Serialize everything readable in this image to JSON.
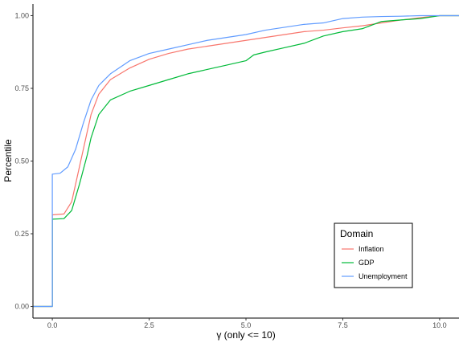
{
  "chart_data": {
    "type": "line",
    "xlabel": "γ (only <= 10)",
    "ylabel": "Percentile",
    "xlim": [
      -0.5,
      10.5
    ],
    "ylim": [
      -0.04,
      1.04
    ],
    "x_ticks": [
      0.0,
      2.5,
      5.0,
      7.5,
      10.0
    ],
    "x_tick_labels": [
      "0.0",
      "2.5",
      "5.0",
      "7.5",
      "10.0"
    ],
    "y_ticks": [
      0.0,
      0.25,
      0.5,
      0.75,
      1.0
    ],
    "y_tick_labels": [
      "0.00",
      "0.25",
      "0.50",
      "0.75",
      "1.00"
    ],
    "grid": false,
    "legend": {
      "title": "Domain",
      "placement": "bottom-right",
      "entries": [
        "Inflation",
        "GDP",
        "Unemployment"
      ]
    },
    "series": [
      {
        "name": "Inflation",
        "color": "#F8766D",
        "x": [
          -0.5,
          0.0,
          0.0,
          0.3,
          0.5,
          0.7,
          0.9,
          1.0,
          1.2,
          1.5,
          2.0,
          2.5,
          3.0,
          3.5,
          4.0,
          4.5,
          5.0,
          5.5,
          6.0,
          6.5,
          7.0,
          7.5,
          8.0,
          8.5,
          9.0,
          9.5,
          10.0,
          10.5
        ],
        "y": [
          0.0,
          0.0,
          0.315,
          0.318,
          0.36,
          0.48,
          0.6,
          0.66,
          0.73,
          0.78,
          0.82,
          0.85,
          0.87,
          0.885,
          0.895,
          0.905,
          0.915,
          0.925,
          0.935,
          0.945,
          0.95,
          0.958,
          0.965,
          0.975,
          0.985,
          0.993,
          1.0,
          1.0
        ]
      },
      {
        "name": "GDP",
        "color": "#00BA38",
        "x": [
          -0.5,
          0.0,
          0.0,
          0.3,
          0.5,
          0.7,
          0.9,
          1.0,
          1.2,
          1.5,
          2.0,
          2.5,
          3.0,
          3.5,
          4.0,
          4.5,
          5.0,
          5.2,
          5.5,
          6.0,
          6.5,
          7.0,
          7.5,
          8.0,
          8.5,
          9.0,
          9.5,
          10.0,
          10.5
        ],
        "y": [
          0.0,
          0.0,
          0.3,
          0.302,
          0.33,
          0.42,
          0.52,
          0.58,
          0.66,
          0.71,
          0.74,
          0.76,
          0.78,
          0.8,
          0.815,
          0.83,
          0.845,
          0.865,
          0.875,
          0.89,
          0.905,
          0.93,
          0.945,
          0.955,
          0.98,
          0.985,
          0.99,
          1.0,
          1.0
        ]
      },
      {
        "name": "Unemployment",
        "color": "#619CFF",
        "x": [
          -0.5,
          0.0,
          0.0,
          0.2,
          0.4,
          0.6,
          0.8,
          1.0,
          1.2,
          1.5,
          2.0,
          2.5,
          3.0,
          3.5,
          4.0,
          4.5,
          5.0,
          5.5,
          6.0,
          6.5,
          7.0,
          7.5,
          8.0,
          8.5,
          9.0,
          9.5,
          10.0,
          10.5
        ],
        "y": [
          0.0,
          0.0,
          0.455,
          0.458,
          0.48,
          0.54,
          0.63,
          0.71,
          0.76,
          0.8,
          0.845,
          0.87,
          0.885,
          0.9,
          0.915,
          0.925,
          0.935,
          0.95,
          0.96,
          0.97,
          0.975,
          0.99,
          0.995,
          0.997,
          0.998,
          1.0,
          1.0,
          1.0
        ]
      }
    ]
  }
}
